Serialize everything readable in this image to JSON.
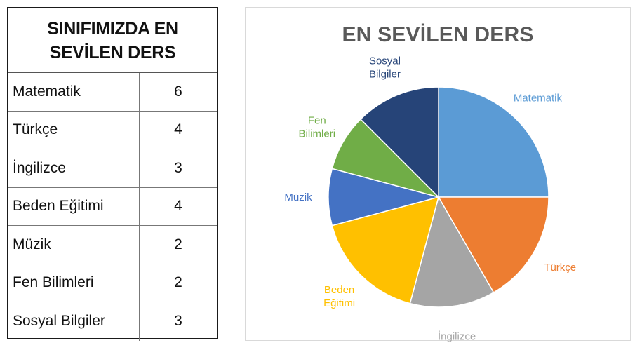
{
  "table": {
    "title_line1": "SINIFIMIZDA EN",
    "title_line2": "SEVİLEN DERS",
    "rows": [
      {
        "subject": "Matematik",
        "count": "6"
      },
      {
        "subject": "Türkçe",
        "count": "4"
      },
      {
        "subject": "İngilizce",
        "count": "3"
      },
      {
        "subject": "Beden Eğitimi",
        "count": "4"
      },
      {
        "subject": "Müzik",
        "count": "2"
      },
      {
        "subject": "Fen Bilimleri",
        "count": "2"
      },
      {
        "subject": "Sosyal Bilgiler",
        "count": "3"
      }
    ]
  },
  "chart_data": {
    "type": "pie",
    "title": "EN SEVİLEN DERS",
    "categories": [
      "Matematik",
      "Türkçe",
      "İngilizce",
      "Beden Eğitimi",
      "Müzik",
      "Fen Bilimleri",
      "Sosyal Bilgiler"
    ],
    "values": [
      6,
      4,
      3,
      4,
      2,
      2,
      3
    ],
    "colors": [
      "#5B9BD5",
      "#ED7D31",
      "#A5A5A5",
      "#FFC000",
      "#4472C4",
      "#70AD47",
      "#264478"
    ],
    "label_lines": [
      [
        "Matematik"
      ],
      [
        "Türkçe"
      ],
      [
        "İngilizce"
      ],
      [
        "Beden",
        "Eğitimi"
      ],
      [
        "Müzik"
      ],
      [
        "Fen",
        "Bilimleri"
      ],
      [
        "Sosyal",
        "Bilgiler"
      ]
    ],
    "start_angle": "top",
    "direction": "clockwise"
  }
}
